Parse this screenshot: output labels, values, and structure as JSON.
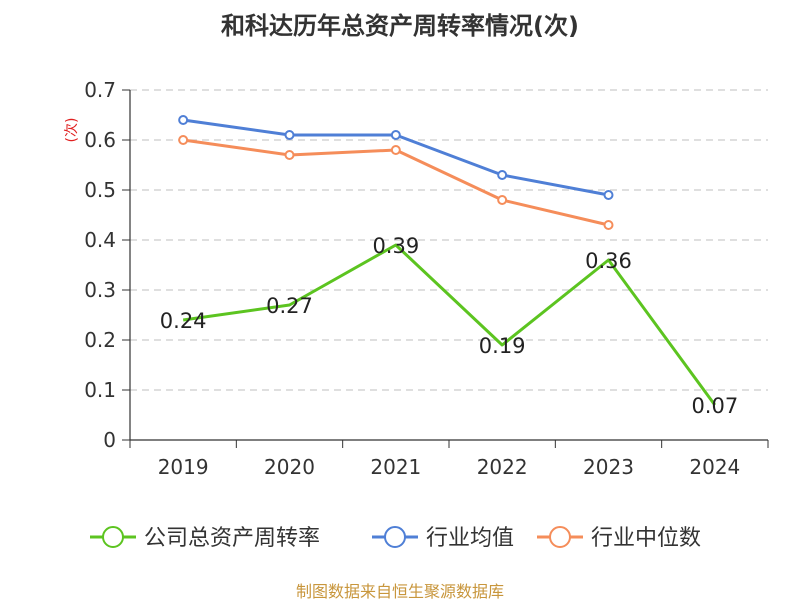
{
  "title": "和科达历年总资产周转率情况(次)",
  "source": "制图数据来自恒生聚源数据库",
  "chart_data": {
    "type": "line",
    "title": "和科达历年总资产周转率情况(次)",
    "ylabel": "(次)",
    "xlabel": "",
    "categories": [
      "2019",
      "2020",
      "2021",
      "2022",
      "2023",
      "2024"
    ],
    "ylim": [
      0,
      0.7
    ],
    "yticks": [
      "0",
      "0.1",
      "0.2",
      "0.3",
      "0.4",
      "0.5",
      "0.6",
      "0.7"
    ],
    "grid": true,
    "legend_position": "bottom",
    "series": [
      {
        "name": "公司总资产周转率",
        "color": "#5cc420",
        "values": [
          0.24,
          0.27,
          0.39,
          0.19,
          0.36,
          0.07
        ],
        "labels": [
          "0.24",
          "0.27",
          "0.39",
          "0.19",
          "0.36",
          "0.07"
        ]
      },
      {
        "name": "行业均值",
        "color": "#4f7fd6",
        "values": [
          0.64,
          0.61,
          0.61,
          0.53,
          0.49,
          null
        ]
      },
      {
        "name": "行业中位数",
        "color": "#f58d5a",
        "values": [
          0.6,
          0.57,
          0.58,
          0.48,
          0.43,
          null
        ]
      }
    ]
  }
}
